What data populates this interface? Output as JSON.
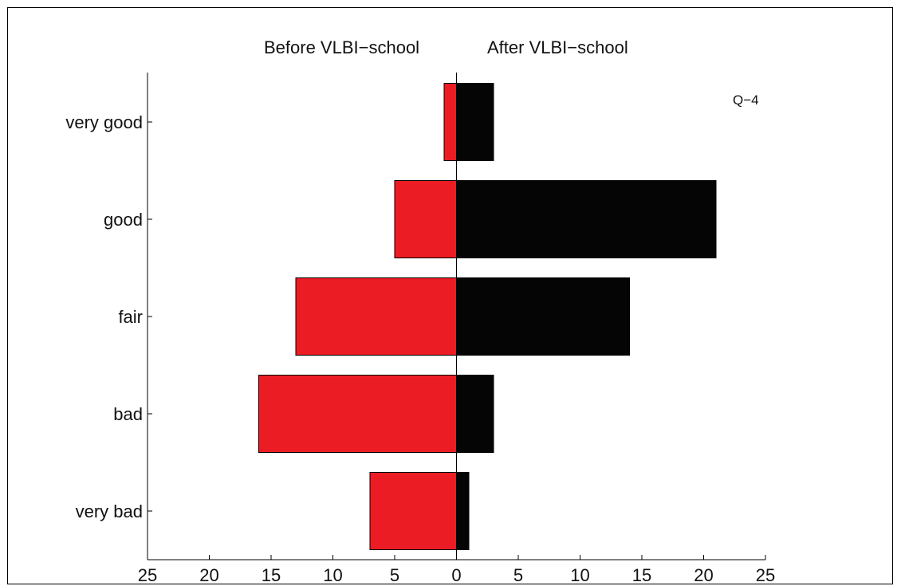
{
  "chart_data": {
    "type": "bar",
    "orientation": "horizontal",
    "layout": "back-to-back",
    "panel_label": "Q−4",
    "headers": {
      "left": "Before VLBI−school",
      "right": "After VLBI−school"
    },
    "categories": [
      "very good",
      "good",
      "fair",
      "bad",
      "very bad"
    ],
    "series": [
      {
        "name": "Before VLBI−school",
        "side": "left",
        "color": "#ec1c24",
        "values": [
          1,
          5,
          13,
          16,
          7
        ]
      },
      {
        "name": "After VLBI−school",
        "side": "right",
        "color": "#050505",
        "values": [
          3,
          21,
          14,
          3,
          1
        ]
      }
    ],
    "xlim": [
      -25,
      25
    ],
    "xticks": [
      -25,
      -20,
      -15,
      -10,
      -5,
      0,
      5,
      10,
      15,
      20,
      25
    ],
    "xtick_labels": [
      "25",
      "20",
      "15",
      "10",
      "5",
      "0",
      "5",
      "10",
      "15",
      "20",
      "25"
    ],
    "grid": false
  }
}
